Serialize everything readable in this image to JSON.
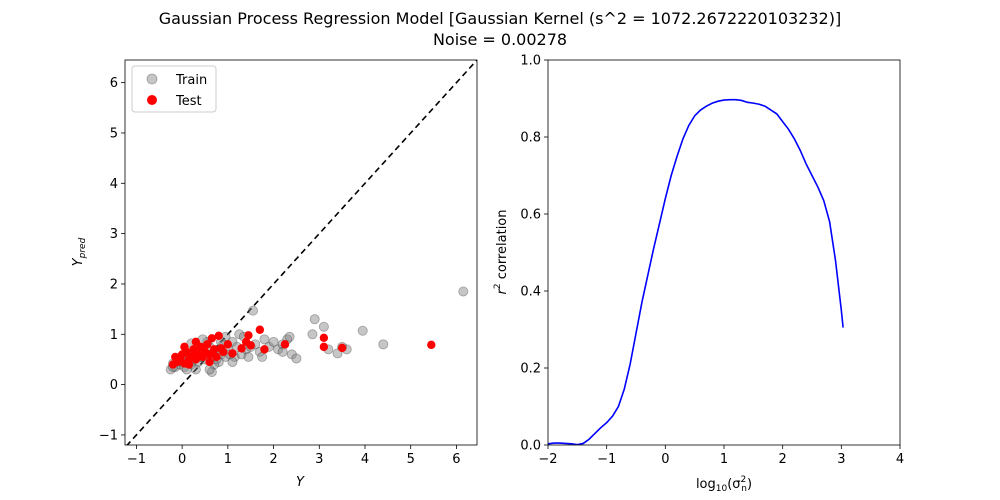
{
  "figure": {
    "title_line1": "Gaussian Process Regression Model [Gaussian Kernel (s^2 = 1072.2672220103232)]",
    "title_line2": "Noise = 0.00278"
  },
  "chart_data": [
    {
      "type": "scatter",
      "xlabel": "Y",
      "ylabel": "Y_pred",
      "xlim": [
        -1.25,
        6.45
      ],
      "ylim": [
        -1.2,
        6.45
      ],
      "xticks": [
        -1,
        0,
        1,
        2,
        3,
        4,
        5,
        6
      ],
      "yticks": [
        -1,
        0,
        1,
        2,
        3,
        4,
        5,
        6
      ],
      "legend": {
        "placement": "top-left",
        "entries": [
          "Train",
          "Test"
        ]
      },
      "reference_line": {
        "style": "dashed",
        "slope": 1,
        "intercept": 0
      },
      "series": [
        {
          "name": "Train",
          "color": "#808080",
          "points": [
            [
              -0.25,
              0.3
            ],
            [
              -0.2,
              0.42
            ],
            [
              -0.15,
              0.35
            ],
            [
              -0.1,
              0.5
            ],
            [
              -0.05,
              0.4
            ],
            [
              0.0,
              0.45
            ],
            [
              0.05,
              0.35
            ],
            [
              0.1,
              0.55
            ],
            [
              0.15,
              0.6
            ],
            [
              0.2,
              0.4
            ],
            [
              0.25,
              0.5
            ],
            [
              0.3,
              0.65
            ],
            [
              0.35,
              0.45
            ],
            [
              0.4,
              0.55
            ],
            [
              0.45,
              0.7
            ],
            [
              0.5,
              0.5
            ],
            [
              0.55,
              0.6
            ],
            [
              0.6,
              0.75
            ],
            [
              0.65,
              0.55
            ],
            [
              0.7,
              0.65
            ],
            [
              0.75,
              0.5
            ],
            [
              0.8,
              0.7
            ],
            [
              0.85,
              0.6
            ],
            [
              0.9,
              0.8
            ],
            [
              0.95,
              0.55
            ],
            [
              1.0,
              0.7
            ],
            [
              1.05,
              0.6
            ],
            [
              1.1,
              0.85
            ],
            [
              1.15,
              0.55
            ],
            [
              1.2,
              0.75
            ],
            [
              0.2,
              0.82
            ],
            [
              0.55,
              0.85
            ],
            [
              0.65,
              0.25
            ],
            [
              0.3,
              0.3
            ],
            [
              0.05,
              0.6
            ],
            [
              0.8,
              0.45
            ],
            [
              1.3,
              0.6
            ],
            [
              1.4,
              0.7
            ],
            [
              1.5,
              0.75
            ],
            [
              1.6,
              0.8
            ],
            [
              1.55,
              1.47
            ],
            [
              1.7,
              0.65
            ],
            [
              1.8,
              0.9
            ],
            [
              1.9,
              0.75
            ],
            [
              2.0,
              0.85
            ],
            [
              2.1,
              0.7
            ],
            [
              2.2,
              0.8
            ],
            [
              2.3,
              0.9
            ],
            [
              2.4,
              0.6
            ],
            [
              2.5,
              0.52
            ],
            [
              2.2,
              0.65
            ],
            [
              2.35,
              0.95
            ],
            [
              1.75,
              0.55
            ],
            [
              2.85,
              1.0
            ],
            [
              2.9,
              1.3
            ],
            [
              3.1,
              1.15
            ],
            [
              3.2,
              0.7
            ],
            [
              3.4,
              0.62
            ],
            [
              3.5,
              0.75
            ],
            [
              3.6,
              0.7
            ],
            [
              3.95,
              1.07
            ],
            [
              4.4,
              0.8
            ],
            [
              6.15,
              1.85
            ],
            [
              0.95,
              0.95
            ],
            [
              1.25,
              1.0
            ],
            [
              1.35,
              0.95
            ],
            [
              0.45,
              0.9
            ],
            [
              0.1,
              0.3
            ],
            [
              -0.2,
              0.35
            ],
            [
              0.7,
              0.4
            ],
            [
              0.85,
              0.85
            ],
            [
              1.1,
              0.45
            ],
            [
              0.6,
              0.3
            ],
            [
              1.45,
              0.55
            ]
          ]
        },
        {
          "name": "Test",
          "color": "#ff0000",
          "points": [
            [
              -0.2,
              0.4
            ],
            [
              -0.15,
              0.55
            ],
            [
              -0.1,
              0.45
            ],
            [
              -0.05,
              0.5
            ],
            [
              0.0,
              0.6
            ],
            [
              0.05,
              0.42
            ],
            [
              0.1,
              0.65
            ],
            [
              0.15,
              0.5
            ],
            [
              0.2,
              0.55
            ],
            [
              0.25,
              0.7
            ],
            [
              0.3,
              0.5
            ],
            [
              0.35,
              0.6
            ],
            [
              0.4,
              0.75
            ],
            [
              0.45,
              0.55
            ],
            [
              0.5,
              0.65
            ],
            [
              0.55,
              0.8
            ],
            [
              0.6,
              0.6
            ],
            [
              0.65,
              0.92
            ],
            [
              0.7,
              0.7
            ],
            [
              0.75,
              0.55
            ],
            [
              0.8,
              0.97
            ],
            [
              0.85,
              0.72
            ],
            [
              0.9,
              0.65
            ],
            [
              1.0,
              0.8
            ],
            [
              1.1,
              0.62
            ],
            [
              1.3,
              0.72
            ],
            [
              1.4,
              0.85
            ],
            [
              1.5,
              0.78
            ],
            [
              1.7,
              1.09
            ],
            [
              1.8,
              0.7
            ],
            [
              2.25,
              0.8
            ],
            [
              3.1,
              0.93
            ],
            [
              3.1,
              0.75
            ],
            [
              3.5,
              0.73
            ],
            [
              5.45,
              0.79
            ],
            [
              0.05,
              0.75
            ],
            [
              0.3,
              0.85
            ],
            [
              0.15,
              0.4
            ],
            [
              0.6,
              0.45
            ],
            [
              1.45,
              0.98
            ]
          ]
        }
      ]
    },
    {
      "type": "line",
      "xlabel": "log10(σ_n^2)",
      "ylabel": "r^2 correlation",
      "xlim": [
        -2,
        4
      ],
      "ylim": [
        0.0,
        1.0
      ],
      "xticks": [
        -2,
        -1,
        0,
        1,
        2,
        3,
        4
      ],
      "yticks": [
        0.0,
        0.2,
        0.4,
        0.6,
        0.8,
        1.0
      ],
      "series": [
        {
          "color": "#0000ff",
          "x": [
            -2.0,
            -1.9,
            -1.8,
            -1.7,
            -1.6,
            -1.5,
            -1.4,
            -1.3,
            -1.2,
            -1.1,
            -1.0,
            -0.9,
            -0.8,
            -0.7,
            -0.6,
            -0.5,
            -0.4,
            -0.3,
            -0.2,
            -0.1,
            0.0,
            0.1,
            0.2,
            0.3,
            0.4,
            0.5,
            0.6,
            0.7,
            0.8,
            0.9,
            1.0,
            1.1,
            1.2,
            1.3,
            1.4,
            1.5,
            1.6,
            1.7,
            1.8,
            1.9,
            2.0,
            2.1,
            2.2,
            2.3,
            2.4,
            2.5,
            2.6,
            2.7,
            2.8,
            2.9,
            3.0,
            3.03
          ],
          "y": [
            0.003,
            0.005,
            0.005,
            0.004,
            0.003,
            0.001,
            0.004,
            0.015,
            0.03,
            0.045,
            0.058,
            0.075,
            0.1,
            0.145,
            0.21,
            0.29,
            0.37,
            0.44,
            0.51,
            0.575,
            0.64,
            0.7,
            0.75,
            0.795,
            0.83,
            0.855,
            0.87,
            0.88,
            0.888,
            0.893,
            0.896,
            0.897,
            0.897,
            0.895,
            0.89,
            0.888,
            0.885,
            0.88,
            0.87,
            0.86,
            0.84,
            0.82,
            0.795,
            0.765,
            0.73,
            0.7,
            0.67,
            0.635,
            0.58,
            0.48,
            0.35,
            0.305
          ]
        }
      ]
    }
  ]
}
